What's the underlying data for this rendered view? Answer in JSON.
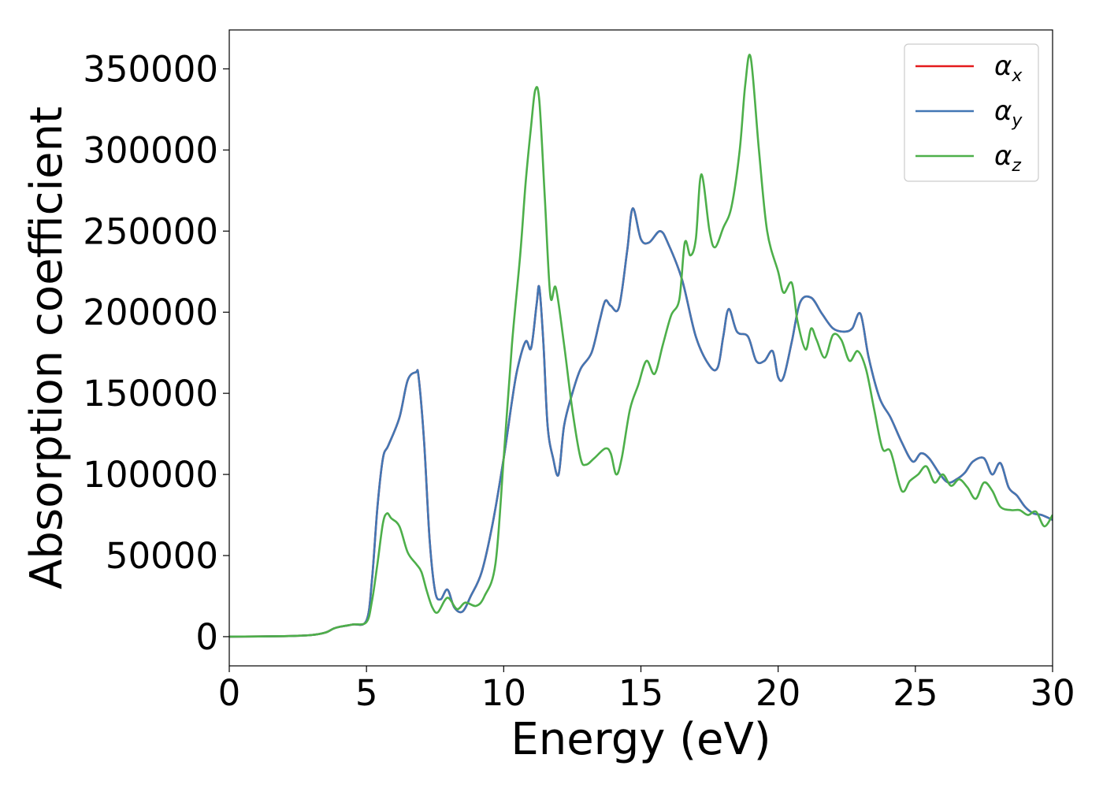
{
  "chart_data": {
    "type": "line",
    "xlabel": "Energy (eV)",
    "ylabel": "Absorption coefficient",
    "xlim": [
      0,
      30
    ],
    "ylim": [
      -18000,
      374000
    ],
    "xticks": [
      0,
      5,
      10,
      15,
      20,
      25,
      30
    ],
    "xtick_labels": [
      "0",
      "5",
      "10",
      "15",
      "20",
      "25",
      "30"
    ],
    "yticks": [
      0,
      50000,
      100000,
      150000,
      200000,
      250000,
      300000,
      350000
    ],
    "ytick_labels": [
      "0",
      "50000",
      "100000",
      "150000",
      "200000",
      "250000",
      "300000",
      "350000"
    ],
    "grid": false,
    "legend_position": "top-right",
    "series": [
      {
        "name": "α_x",
        "label_base": "α",
        "label_sub": "x",
        "color": "#e41a1c",
        "x": [
          0,
          2,
          3,
          3.5,
          3.8,
          4.0,
          4.5,
          5.0,
          5.2,
          5.4,
          5.6,
          5.8,
          6.2,
          6.5,
          6.8,
          6.9,
          7.1,
          7.3,
          7.5,
          7.7,
          7.95,
          8.2,
          8.5,
          8.8,
          9.2,
          9.6,
          10.0,
          10.3,
          10.5,
          10.8,
          11.0,
          11.2,
          11.3,
          11.45,
          11.6,
          11.8,
          12.0,
          12.2,
          12.5,
          12.8,
          13.2,
          13.5,
          13.7,
          13.9,
          14.2,
          14.5,
          14.7,
          15.0,
          15.3,
          15.7,
          16.0,
          16.5,
          17.0,
          17.5,
          17.8,
          18.0,
          18.2,
          18.5,
          18.9,
          19.2,
          19.5,
          19.8,
          20.0,
          20.2,
          20.5,
          20.8,
          21.2,
          21.6,
          22.0,
          22.4,
          22.7,
          23.0,
          23.3,
          23.7,
          24.1,
          24.5,
          24.9,
          25.2,
          25.5,
          25.9,
          26.2,
          26.5,
          26.8,
          27.1,
          27.5,
          27.8,
          28.1,
          28.4,
          28.7,
          29.0,
          29.3,
          29.6,
          30.0
        ],
        "y": [
          0,
          300,
          1000,
          2500,
          5000,
          6000,
          7500,
          10000,
          35000,
          80000,
          110000,
          118000,
          135000,
          158000,
          163000,
          160000,
          120000,
          60000,
          28000,
          23000,
          29000,
          18000,
          15500,
          25000,
          40000,
          70000,
          110000,
          145000,
          165000,
          182000,
          178000,
          205000,
          215000,
          180000,
          130000,
          110000,
          100000,
          130000,
          150000,
          165000,
          175000,
          195000,
          207000,
          204000,
          203000,
          238000,
          264000,
          245000,
          243000,
          250000,
          242000,
          220000,
          185000,
          167000,
          166000,
          185000,
          202000,
          188000,
          185000,
          170000,
          170000,
          176000,
          160000,
          160000,
          182000,
          206000,
          209000,
          199000,
          190000,
          188000,
          190000,
          199000,
          172000,
          147000,
          135000,
          120000,
          108000,
          113000,
          110000,
          100000,
          95000,
          97000,
          101000,
          108000,
          110000,
          100000,
          107000,
          92000,
          87000,
          80000,
          76000,
          75000,
          72000
        ]
      },
      {
        "name": "α_y",
        "label_base": "α",
        "label_sub": "y",
        "color": "#4277b4",
        "x": [
          0,
          2,
          3,
          3.5,
          3.8,
          4.0,
          4.5,
          5.0,
          5.2,
          5.4,
          5.6,
          5.8,
          6.2,
          6.5,
          6.8,
          6.9,
          7.1,
          7.3,
          7.5,
          7.7,
          7.95,
          8.2,
          8.5,
          8.8,
          9.2,
          9.6,
          10.0,
          10.3,
          10.5,
          10.8,
          11.0,
          11.2,
          11.3,
          11.45,
          11.6,
          11.8,
          12.0,
          12.2,
          12.5,
          12.8,
          13.2,
          13.5,
          13.7,
          13.9,
          14.2,
          14.5,
          14.7,
          15.0,
          15.3,
          15.7,
          16.0,
          16.5,
          17.0,
          17.5,
          17.8,
          18.0,
          18.2,
          18.5,
          18.9,
          19.2,
          19.5,
          19.8,
          20.0,
          20.2,
          20.5,
          20.8,
          21.2,
          21.6,
          22.0,
          22.4,
          22.7,
          23.0,
          23.3,
          23.7,
          24.1,
          24.5,
          24.9,
          25.2,
          25.5,
          25.9,
          26.2,
          26.5,
          26.8,
          27.1,
          27.5,
          27.8,
          28.1,
          28.4,
          28.7,
          29.0,
          29.3,
          29.6,
          30.0
        ],
        "y": [
          0,
          300,
          1000,
          2500,
          5000,
          6000,
          7500,
          10000,
          35000,
          80000,
          110000,
          118000,
          135000,
          158000,
          163000,
          160000,
          120000,
          60000,
          28000,
          23000,
          29000,
          18000,
          15500,
          25000,
          40000,
          70000,
          110000,
          145000,
          165000,
          182000,
          178000,
          205000,
          215000,
          180000,
          130000,
          110000,
          100000,
          130000,
          150000,
          165000,
          175000,
          195000,
          207000,
          204000,
          203000,
          238000,
          264000,
          245000,
          243000,
          250000,
          242000,
          220000,
          185000,
          167000,
          166000,
          185000,
          202000,
          188000,
          185000,
          170000,
          170000,
          176000,
          160000,
          160000,
          182000,
          206000,
          209000,
          199000,
          190000,
          188000,
          190000,
          199000,
          172000,
          147000,
          135000,
          120000,
          108000,
          113000,
          110000,
          100000,
          95000,
          97000,
          101000,
          108000,
          110000,
          100000,
          107000,
          92000,
          87000,
          80000,
          76000,
          75000,
          72000
        ]
      },
      {
        "name": "α_z",
        "label_base": "α",
        "label_sub": "z",
        "color": "#4daf4a",
        "x": [
          0,
          2,
          3,
          3.5,
          3.8,
          4.0,
          4.5,
          5.0,
          5.2,
          5.4,
          5.6,
          5.75,
          5.9,
          6.2,
          6.5,
          6.8,
          7.0,
          7.2,
          7.4,
          7.6,
          7.95,
          8.3,
          8.6,
          9.0,
          9.3,
          9.7,
          10.0,
          10.3,
          10.6,
          10.8,
          11.0,
          11.15,
          11.3,
          11.5,
          11.7,
          11.9,
          12.2,
          12.5,
          12.8,
          13.0,
          13.3,
          13.7,
          13.9,
          14.1,
          14.3,
          14.6,
          14.9,
          15.2,
          15.5,
          15.8,
          16.1,
          16.4,
          16.6,
          16.8,
          17.0,
          17.2,
          17.5,
          17.7,
          18.0,
          18.3,
          18.6,
          18.8,
          19.0,
          19.3,
          19.6,
          20.0,
          20.2,
          20.5,
          20.7,
          21.0,
          21.2,
          21.4,
          21.7,
          22.0,
          22.3,
          22.6,
          22.9,
          23.2,
          23.5,
          23.8,
          24.1,
          24.5,
          24.8,
          25.1,
          25.4,
          25.7,
          26.0,
          26.3,
          26.6,
          26.9,
          27.2,
          27.5,
          27.8,
          28.1,
          28.5,
          28.8,
          29.1,
          29.4,
          29.7,
          30.0
        ],
        "y": [
          0,
          300,
          1000,
          2500,
          5000,
          6000,
          7500,
          9000,
          22000,
          45000,
          70000,
          76000,
          73000,
          68000,
          52000,
          45000,
          40000,
          28000,
          18000,
          15000,
          24000,
          17000,
          21000,
          19000,
          25000,
          45000,
          110000,
          180000,
          235000,
          280000,
          315000,
          337000,
          330000,
          270000,
          210000,
          215000,
          180000,
          140000,
          110000,
          106000,
          110000,
          116000,
          113000,
          100000,
          110000,
          140000,
          155000,
          170000,
          162000,
          180000,
          198000,
          208000,
          243000,
          235000,
          245000,
          285000,
          250000,
          240000,
          252000,
          265000,
          300000,
          340000,
          357000,
          300000,
          250000,
          225000,
          212000,
          218000,
          195000,
          177000,
          190000,
          183000,
          172000,
          186000,
          183000,
          170000,
          176000,
          165000,
          140000,
          116000,
          114000,
          90000,
          96000,
          100000,
          105000,
          95000,
          100000,
          93000,
          97000,
          92000,
          85000,
          95000,
          90000,
          80000,
          78000,
          78000,
          75000,
          77000,
          68000,
          75000
        ]
      }
    ]
  }
}
